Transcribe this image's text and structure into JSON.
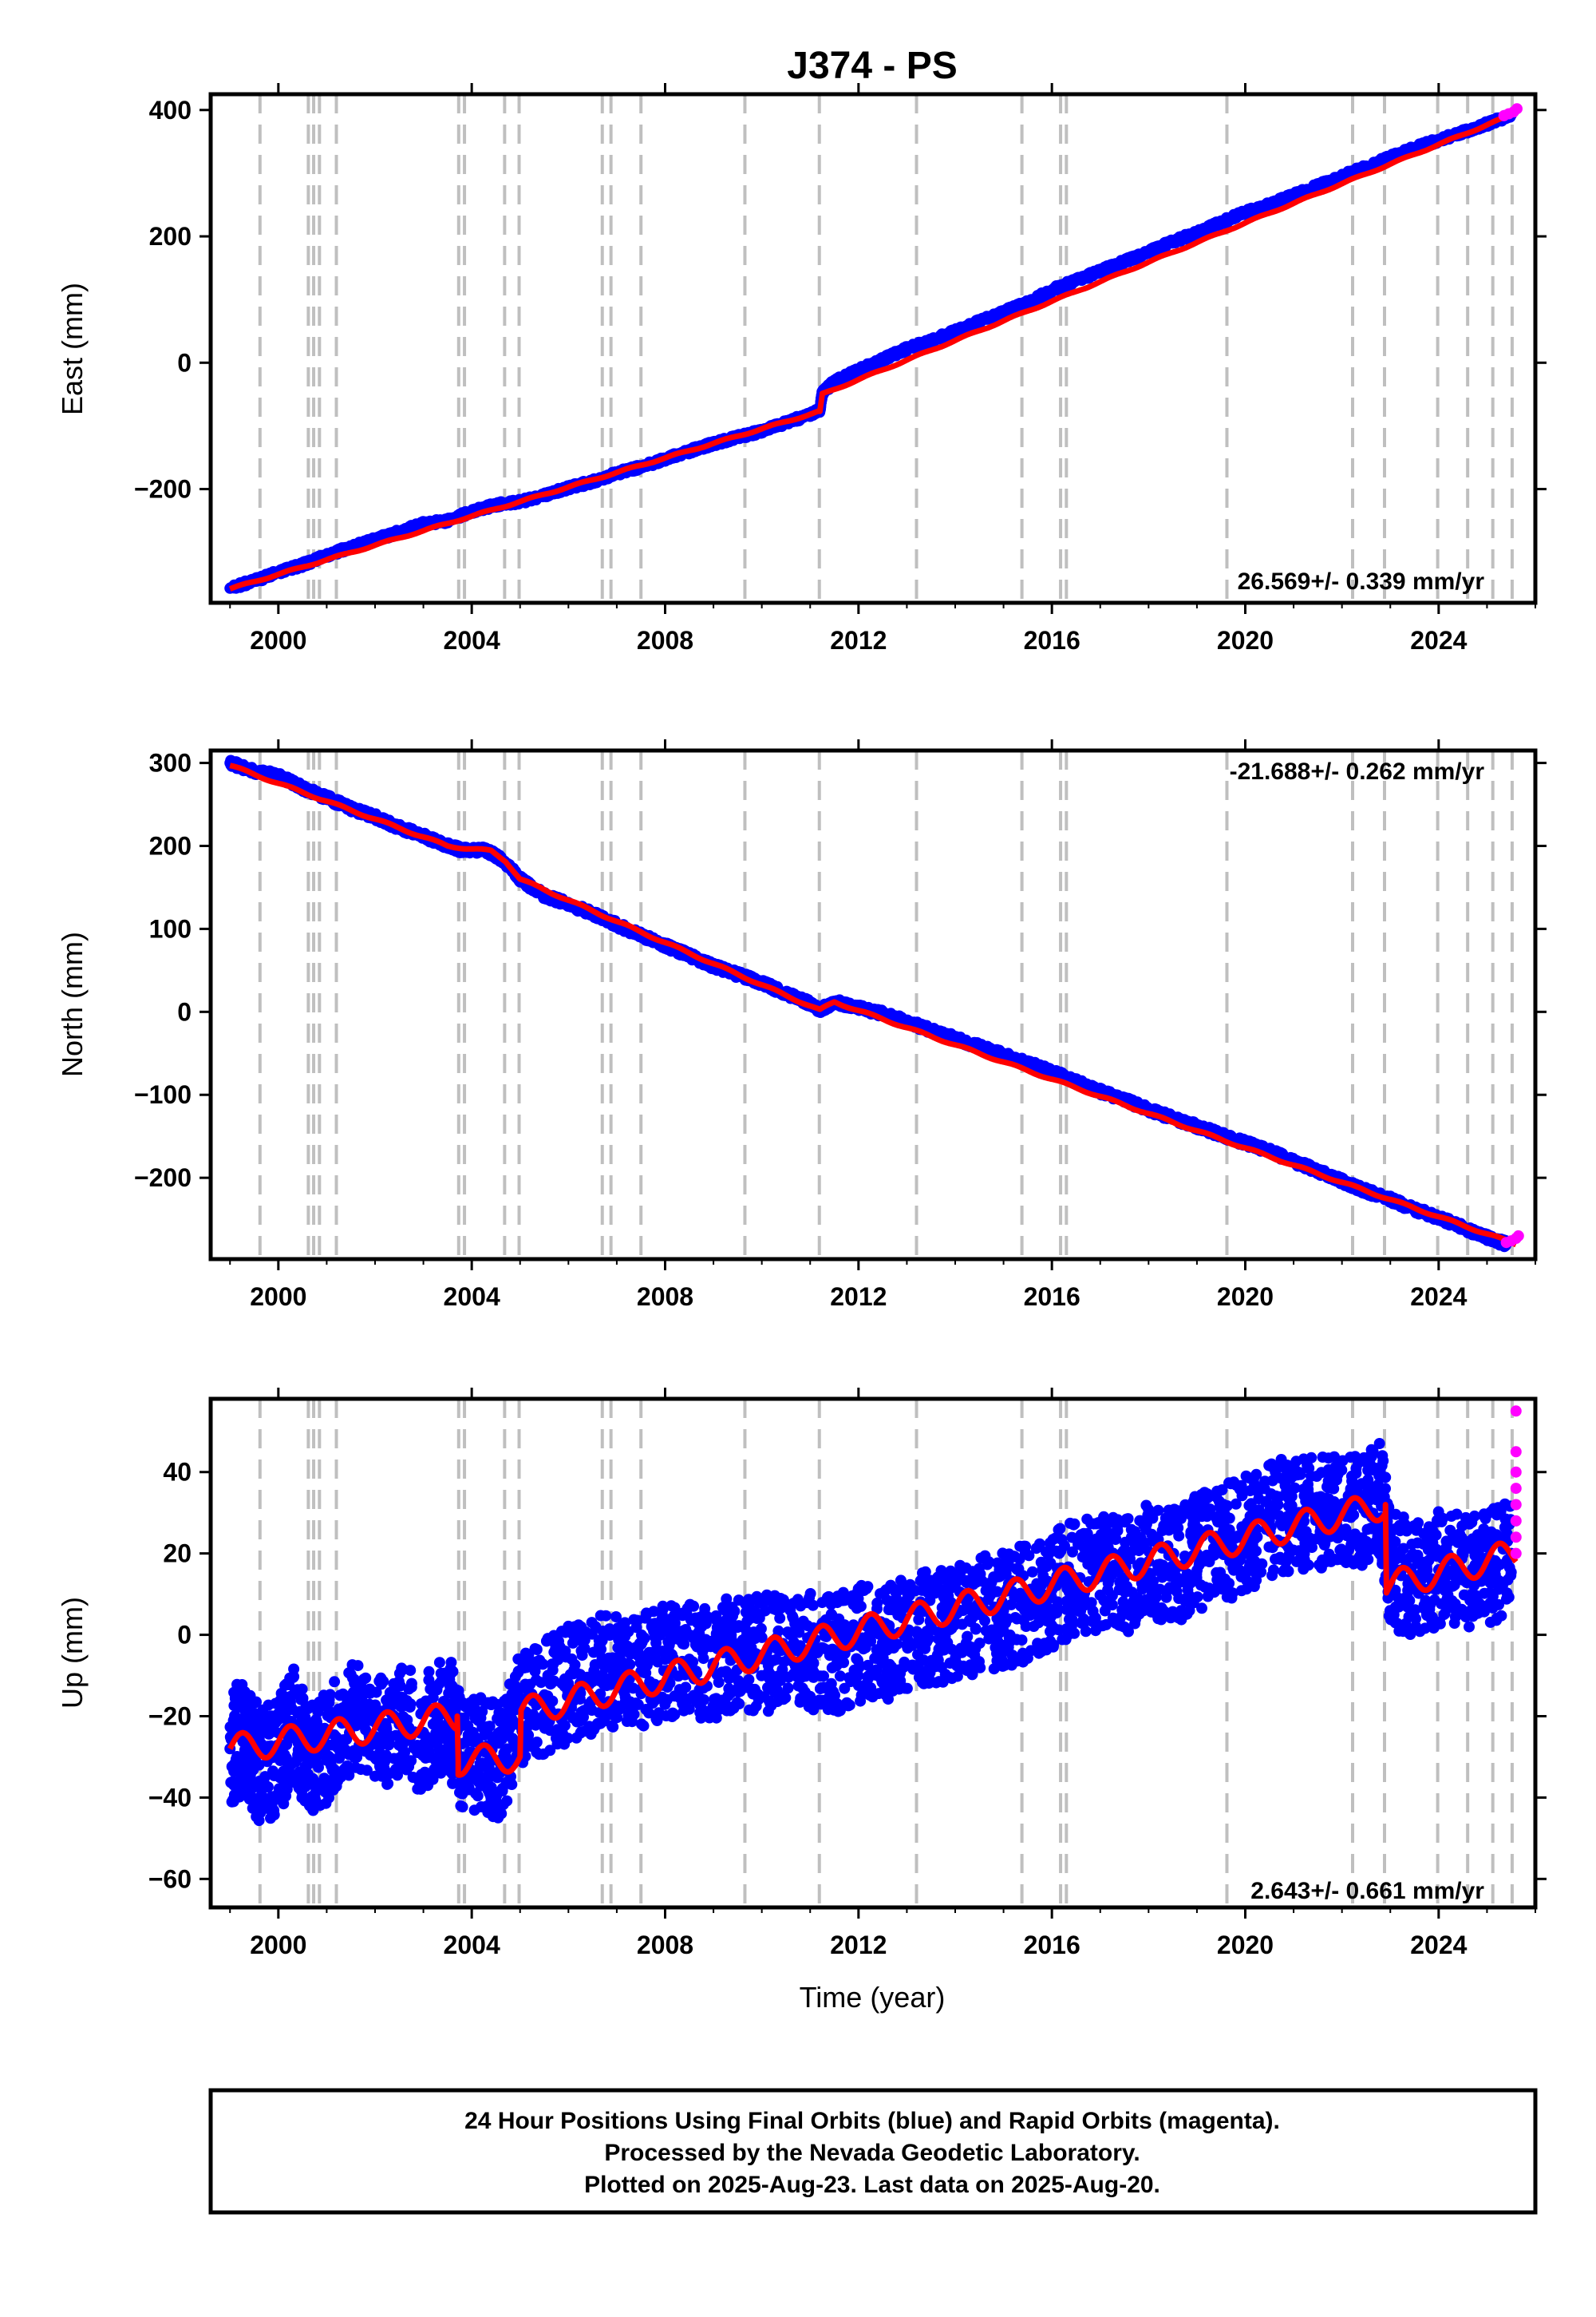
{
  "chart_data": [
    {
      "type": "scatter",
      "title": "J374 - PS",
      "ylabel": "East (mm)",
      "xlim": [
        1998.6,
        2026.0
      ],
      "ylim": [
        -380,
        425
      ],
      "x_ticks": [
        2000,
        2004,
        2008,
        2012,
        2016,
        2020,
        2024
      ],
      "y_ticks": [
        -200,
        0,
        200,
        400
      ],
      "tick_labels_x": [
        "2000",
        "2004",
        "2008",
        "2012",
        "2016",
        "2020",
        "2024"
      ],
      "tick_labels_y": [
        "−200",
        "0",
        "200",
        "400"
      ],
      "rate_text": "26.569+/- 0.339 mm/yr",
      "grid": false,
      "series": [
        {
          "color": "#0000ff",
          "marker": "dot",
          "x": [
            1999.0,
            1999.5,
            2000.0,
            2000.5,
            2001.0,
            2001.5,
            2002.0,
            2002.5,
            2003.0,
            2003.5,
            2004.0,
            2004.5,
            2005.0,
            2005.5,
            2006.0,
            2006.5,
            2007.0,
            2007.5,
            2008.0,
            2008.5,
            2009.0,
            2009.5,
            2010.0,
            2010.5,
            2011.0,
            2011.2,
            2011.25,
            2011.5,
            2012.0,
            2012.5,
            2013.0,
            2013.5,
            2014.0,
            2014.5,
            2015.0,
            2015.5,
            2016.0,
            2016.5,
            2017.0,
            2017.5,
            2018.0,
            2018.5,
            2019.0,
            2019.5,
            2020.0,
            2020.5,
            2021.0,
            2021.5,
            2022.0,
            2022.5,
            2023.0,
            2023.5,
            2024.0,
            2024.5,
            2025.0,
            2025.5
          ],
          "y": [
            -357,
            -345,
            -332,
            -320,
            -305,
            -292,
            -280,
            -268,
            -255,
            -250,
            -235,
            -225,
            -220,
            -210,
            -198,
            -188,
            -175,
            -165,
            -152,
            -140,
            -128,
            -118,
            -108,
            -95,
            -82,
            -75,
            -48,
            -30,
            -12,
            5,
            22,
            35,
            50,
            65,
            80,
            95,
            115,
            130,
            145,
            160,
            175,
            192,
            205,
            222,
            238,
            250,
            265,
            280,
            295,
            310,
            325,
            340,
            352,
            365,
            378,
            392
          ]
        },
        {
          "color": "#ff0000",
          "marker": "line",
          "x": [
            1999.0,
            2011.2,
            2011.25,
            2025.6
          ],
          "y": [
            -358,
            -77,
            -50,
            395
          ]
        },
        {
          "color": "#ff00ff",
          "marker": "dot",
          "x": [
            2025.35,
            2025.45,
            2025.55,
            2025.62
          ],
          "y": [
            391,
            394,
            397,
            402
          ]
        }
      ]
    },
    {
      "type": "scatter",
      "ylabel": "North (mm)",
      "xlim": [
        1998.6,
        2026.0
      ],
      "ylim": [
        -298,
        315
      ],
      "x_ticks": [
        2000,
        2004,
        2008,
        2012,
        2016,
        2020,
        2024
      ],
      "y_ticks": [
        -200,
        -100,
        0,
        100,
        200,
        300
      ],
      "tick_labels_x": [
        "2000",
        "2004",
        "2008",
        "2012",
        "2016",
        "2020",
        "2024"
      ],
      "tick_labels_y": [
        "−200",
        "−100",
        "0",
        "100",
        "200",
        "300"
      ],
      "rate_text": "-21.688+/- 0.262 mm/yr",
      "grid": false,
      "series": [
        {
          "color": "#0000ff",
          "marker": "dot",
          "x": [
            1999.0,
            1999.5,
            2000.0,
            2000.5,
            2001.0,
            2001.5,
            2002.0,
            2002.5,
            2003.0,
            2003.5,
            2003.8,
            2004.3,
            2004.7,
            2005.0,
            2005.5,
            2006.0,
            2006.5,
            2007.0,
            2007.5,
            2008.0,
            2008.5,
            2009.0,
            2009.5,
            2010.0,
            2010.5,
            2011.0,
            2011.2,
            2011.5,
            2012.0,
            2012.5,
            2013.0,
            2013.5,
            2014.0,
            2014.5,
            2015.0,
            2015.5,
            2016.0,
            2016.5,
            2017.0,
            2017.5,
            2018.0,
            2018.5,
            2019.0,
            2019.5,
            2020.0,
            2020.5,
            2021.0,
            2021.5,
            2022.0,
            2022.5,
            2023.0,
            2023.5,
            2024.0,
            2024.5,
            2025.0,
            2025.4
          ],
          "y": [
            300,
            290,
            285,
            270,
            258,
            245,
            235,
            222,
            212,
            200,
            195,
            195,
            180,
            160,
            140,
            130,
            118,
            105,
            92,
            80,
            68,
            55,
            45,
            35,
            22,
            10,
            2,
            12,
            5,
            -2,
            -12,
            -22,
            -32,
            -42,
            -52,
            -62,
            -72,
            -84,
            -96,
            -106,
            -118,
            -128,
            -138,
            -148,
            -158,
            -168,
            -180,
            -192,
            -204,
            -216,
            -226,
            -238,
            -248,
            -260,
            -272,
            -280
          ]
        },
        {
          "color": "#ff0000",
          "marker": "line",
          "x": [
            1999.0,
            2003.5,
            2003.9,
            2004.4,
            2004.7,
            2005.0,
            2011.2,
            2011.5,
            2025.6
          ],
          "y": [
            297,
            200,
            197,
            194,
            182,
            160,
            2,
            12,
            -280
          ]
        },
        {
          "color": "#ff00ff",
          "marker": "dot",
          "x": [
            2025.4,
            2025.5,
            2025.6,
            2025.65
          ],
          "y": [
            -278,
            -276,
            -273,
            -270
          ]
        }
      ]
    },
    {
      "type": "scatter",
      "ylabel": "Up (mm)",
      "xlabel": "Time (year)",
      "xlim": [
        1998.6,
        2026.0
      ],
      "ylim": [
        -67,
        58
      ],
      "x_ticks": [
        2000,
        2004,
        2008,
        2012,
        2016,
        2020,
        2024
      ],
      "y_ticks": [
        -60,
        -40,
        -20,
        0,
        20,
        40
      ],
      "tick_labels_x": [
        "2000",
        "2004",
        "2008",
        "2012",
        "2016",
        "2020",
        "2024"
      ],
      "tick_labels_y": [
        "−60",
        "−40",
        "−20",
        "0",
        "20",
        "40"
      ],
      "rate_text": "2.643+/- 0.661 mm/yr",
      "grid": false,
      "series": [
        {
          "color": "#0000ff",
          "marker": "dot",
          "x": [
            1999.0,
            1999.3,
            1999.6,
            2000.0,
            2000.3,
            2000.6,
            2001.0,
            2001.5,
            2002.0,
            2002.5,
            2003.0,
            2003.5,
            2003.8,
            2004.2,
            2004.6,
            2005.0,
            2005.5,
            2006.0,
            2006.5,
            2007.0,
            2007.5,
            2008.0,
            2008.5,
            2009.0,
            2009.5,
            2010.0,
            2010.5,
            2011.0,
            2011.5,
            2012.0,
            2012.5,
            2013.0,
            2013.5,
            2014.0,
            2014.5,
            2015.0,
            2015.5,
            2016.0,
            2016.5,
            2017.0,
            2017.5,
            2018.0,
            2018.5,
            2019.0,
            2019.5,
            2020.0,
            2020.5,
            2021.0,
            2021.5,
            2022.0,
            2022.5,
            2022.8,
            2023.0,
            2023.5,
            2024.0,
            2024.5,
            2025.0,
            2025.5
          ],
          "y": [
            -28,
            -25,
            -32,
            -30,
            -22,
            -30,
            -27,
            -20,
            -25,
            -22,
            -24,
            -18,
            -30,
            -28,
            -32,
            -18,
            -15,
            -12,
            -10,
            -8,
            -9,
            -6,
            -6,
            -7,
            -4,
            -5,
            -3,
            -4,
            -5,
            -2,
            -3,
            0,
            2,
            3,
            5,
            6,
            8,
            11,
            14,
            15,
            14,
            18,
            17,
            20,
            22,
            25,
            28,
            30,
            30,
            32,
            30,
            33,
            16,
            14,
            16,
            15,
            16,
            20
          ]
        },
        {
          "color": "#ff0000",
          "marker": "line",
          "x": [
            1999.0,
            2003.7,
            2003.72,
            2005.0,
            2005.02,
            2022.9,
            2022.92,
            2025.6
          ],
          "y": [
            -28,
            -20,
            -31,
            -30,
            -19,
            32,
            12,
            20
          ]
        },
        {
          "color": "#ff00ff",
          "marker": "dot",
          "x": [
            2025.6,
            2025.6,
            2025.6,
            2025.6,
            2025.6,
            2025.6,
            2025.6,
            2025.6
          ],
          "y": [
            55,
            45,
            40,
            36,
            32,
            28,
            24,
            20
          ]
        }
      ]
    }
  ],
  "event_lines": [
    1999.62,
    2000.62,
    2000.73,
    2000.85,
    2001.2,
    2003.73,
    2003.85,
    2004.68,
    2004.98,
    2006.7,
    2006.88,
    2007.5,
    2009.65,
    2011.19,
    2013.2,
    2015.38,
    2016.18,
    2016.3,
    2019.62,
    2022.22,
    2022.88,
    2023.98,
    2024.6,
    2025.12,
    2025.52
  ],
  "footer": {
    "line1": "24 Hour Positions Using Final Orbits (blue) and Rapid Orbits (magenta).",
    "line2": "Processed by the Nevada Geodetic Laboratory.",
    "line3": "Plotted on 2025-Aug-23. Last data on 2025-Aug-20."
  }
}
